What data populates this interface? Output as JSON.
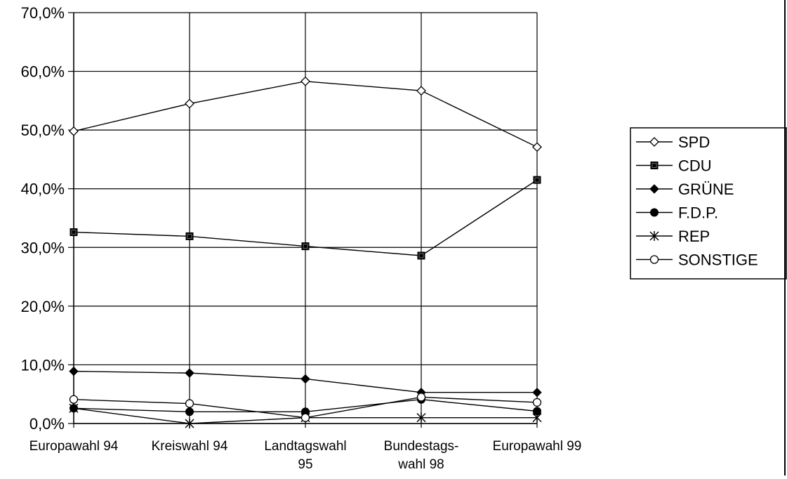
{
  "chart_data": {
    "type": "line",
    "categories": [
      [
        "Europawahl 94"
      ],
      [
        "Kreiswahl 94"
      ],
      [
        "Landtagswahl",
        "95"
      ],
      [
        "Bundestags-",
        "wahl 98"
      ],
      [
        "Europawahl 99"
      ]
    ],
    "yticks": [
      "0,0%",
      "10,0%",
      "20,0%",
      "30,0%",
      "40,0%",
      "50,0%",
      "60,0%",
      "70,0%"
    ],
    "ylim": [
      0,
      70
    ],
    "grid": true,
    "legend_position": "right",
    "series": [
      {
        "name": "SPD",
        "marker": "diamond-open",
        "values": [
          49.8,
          54.5,
          58.3,
          56.7,
          47.1
        ]
      },
      {
        "name": "CDU",
        "marker": "square-filled",
        "values": [
          32.6,
          31.9,
          30.2,
          28.6,
          41.5
        ]
      },
      {
        "name": "GRÜNE",
        "marker": "diamond-filled",
        "values": [
          8.9,
          8.6,
          7.6,
          5.3,
          5.3
        ]
      },
      {
        "name": "F.D.P.",
        "marker": "circle-filled",
        "values": [
          2.6,
          2.0,
          2.0,
          4.1,
          2.1
        ]
      },
      {
        "name": "REP",
        "marker": "asterisk",
        "values": [
          2.6,
          0.0,
          1.0,
          1.0,
          1.0
        ]
      },
      {
        "name": "SONSTIGE",
        "marker": "circle-open",
        "values": [
          4.1,
          3.4,
          1.0,
          4.5,
          3.6
        ]
      }
    ]
  }
}
